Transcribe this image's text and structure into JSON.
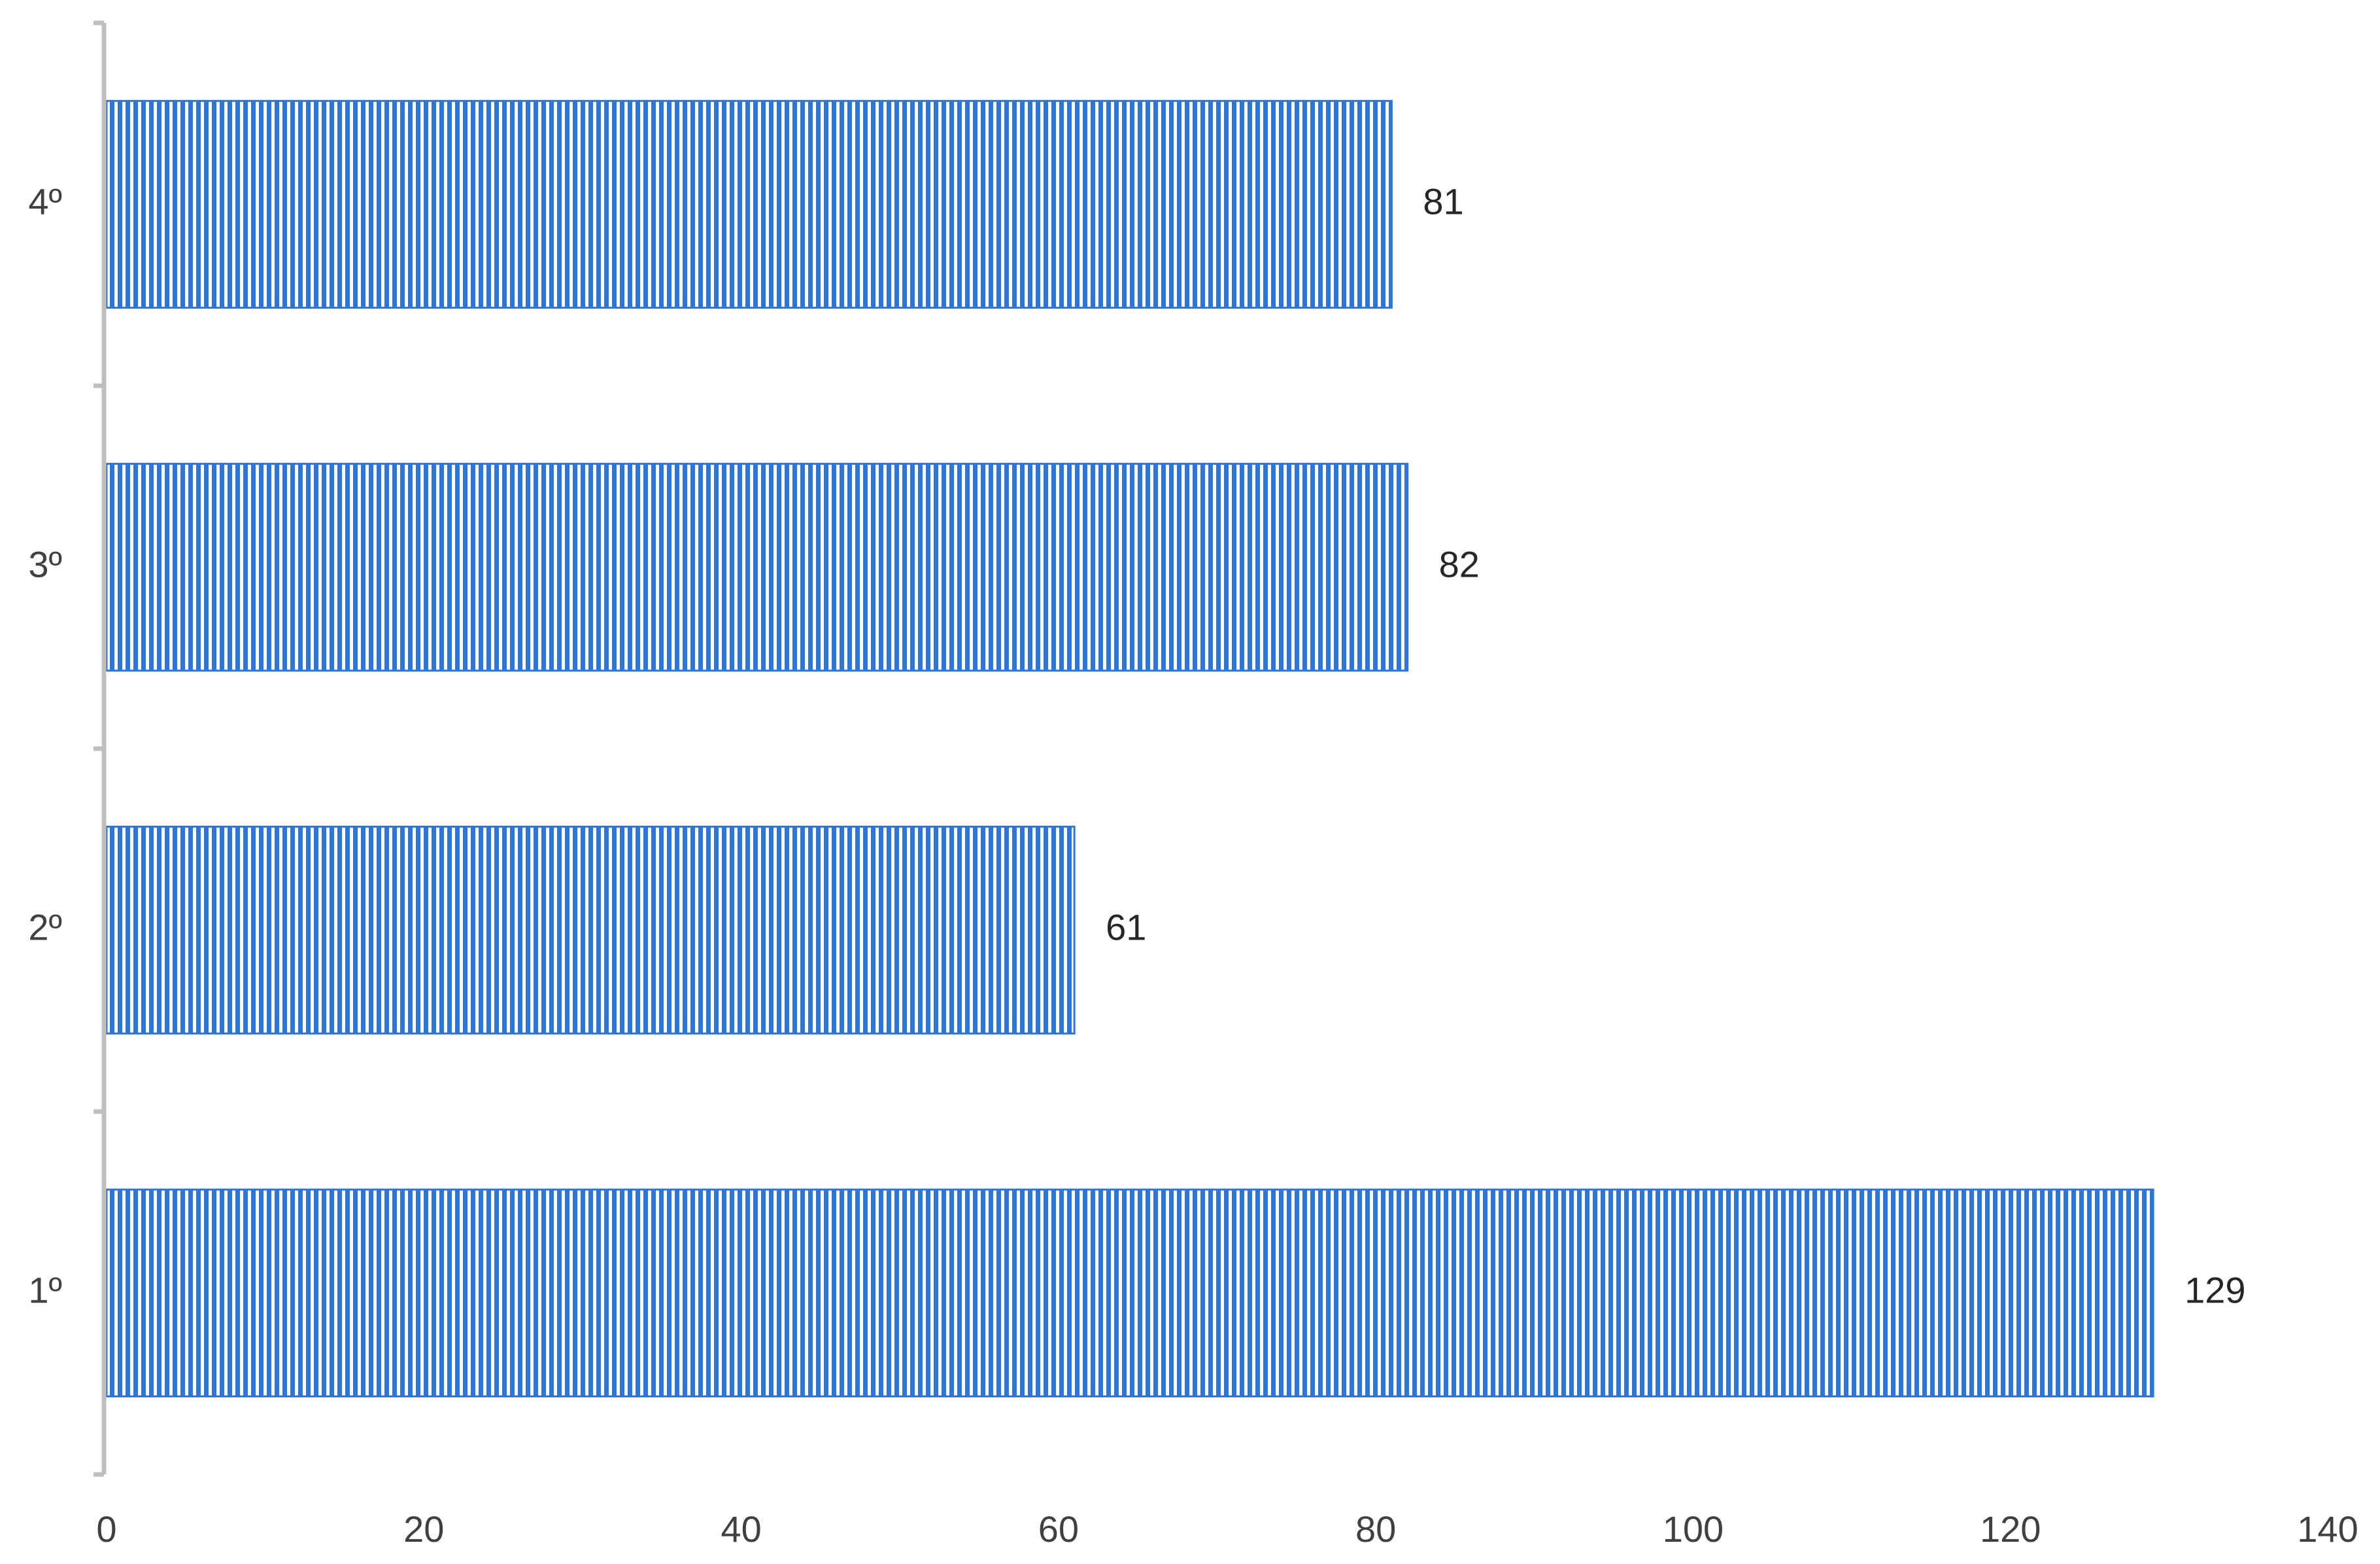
{
  "chart_data": {
    "type": "bar",
    "orientation": "horizontal",
    "categories": [
      "4º",
      "3º",
      "2º",
      "1º"
    ],
    "values": [
      81,
      82,
      61,
      129
    ],
    "data_labels": [
      "81",
      "82",
      "61",
      "129"
    ],
    "xlim": [
      0,
      140
    ],
    "xticks": [
      0,
      20,
      40,
      60,
      80,
      100,
      120,
      140
    ],
    "xtick_labels": [
      "0",
      "20",
      "40",
      "60",
      "80",
      "100",
      "120",
      "140"
    ],
    "title": "",
    "xlabel": "",
    "ylabel": "",
    "grid": false,
    "legend": "none",
    "bar_color": "#2e75d6",
    "bar_pattern": "vertical-stripes",
    "axis_color": "#bfbfbf"
  }
}
